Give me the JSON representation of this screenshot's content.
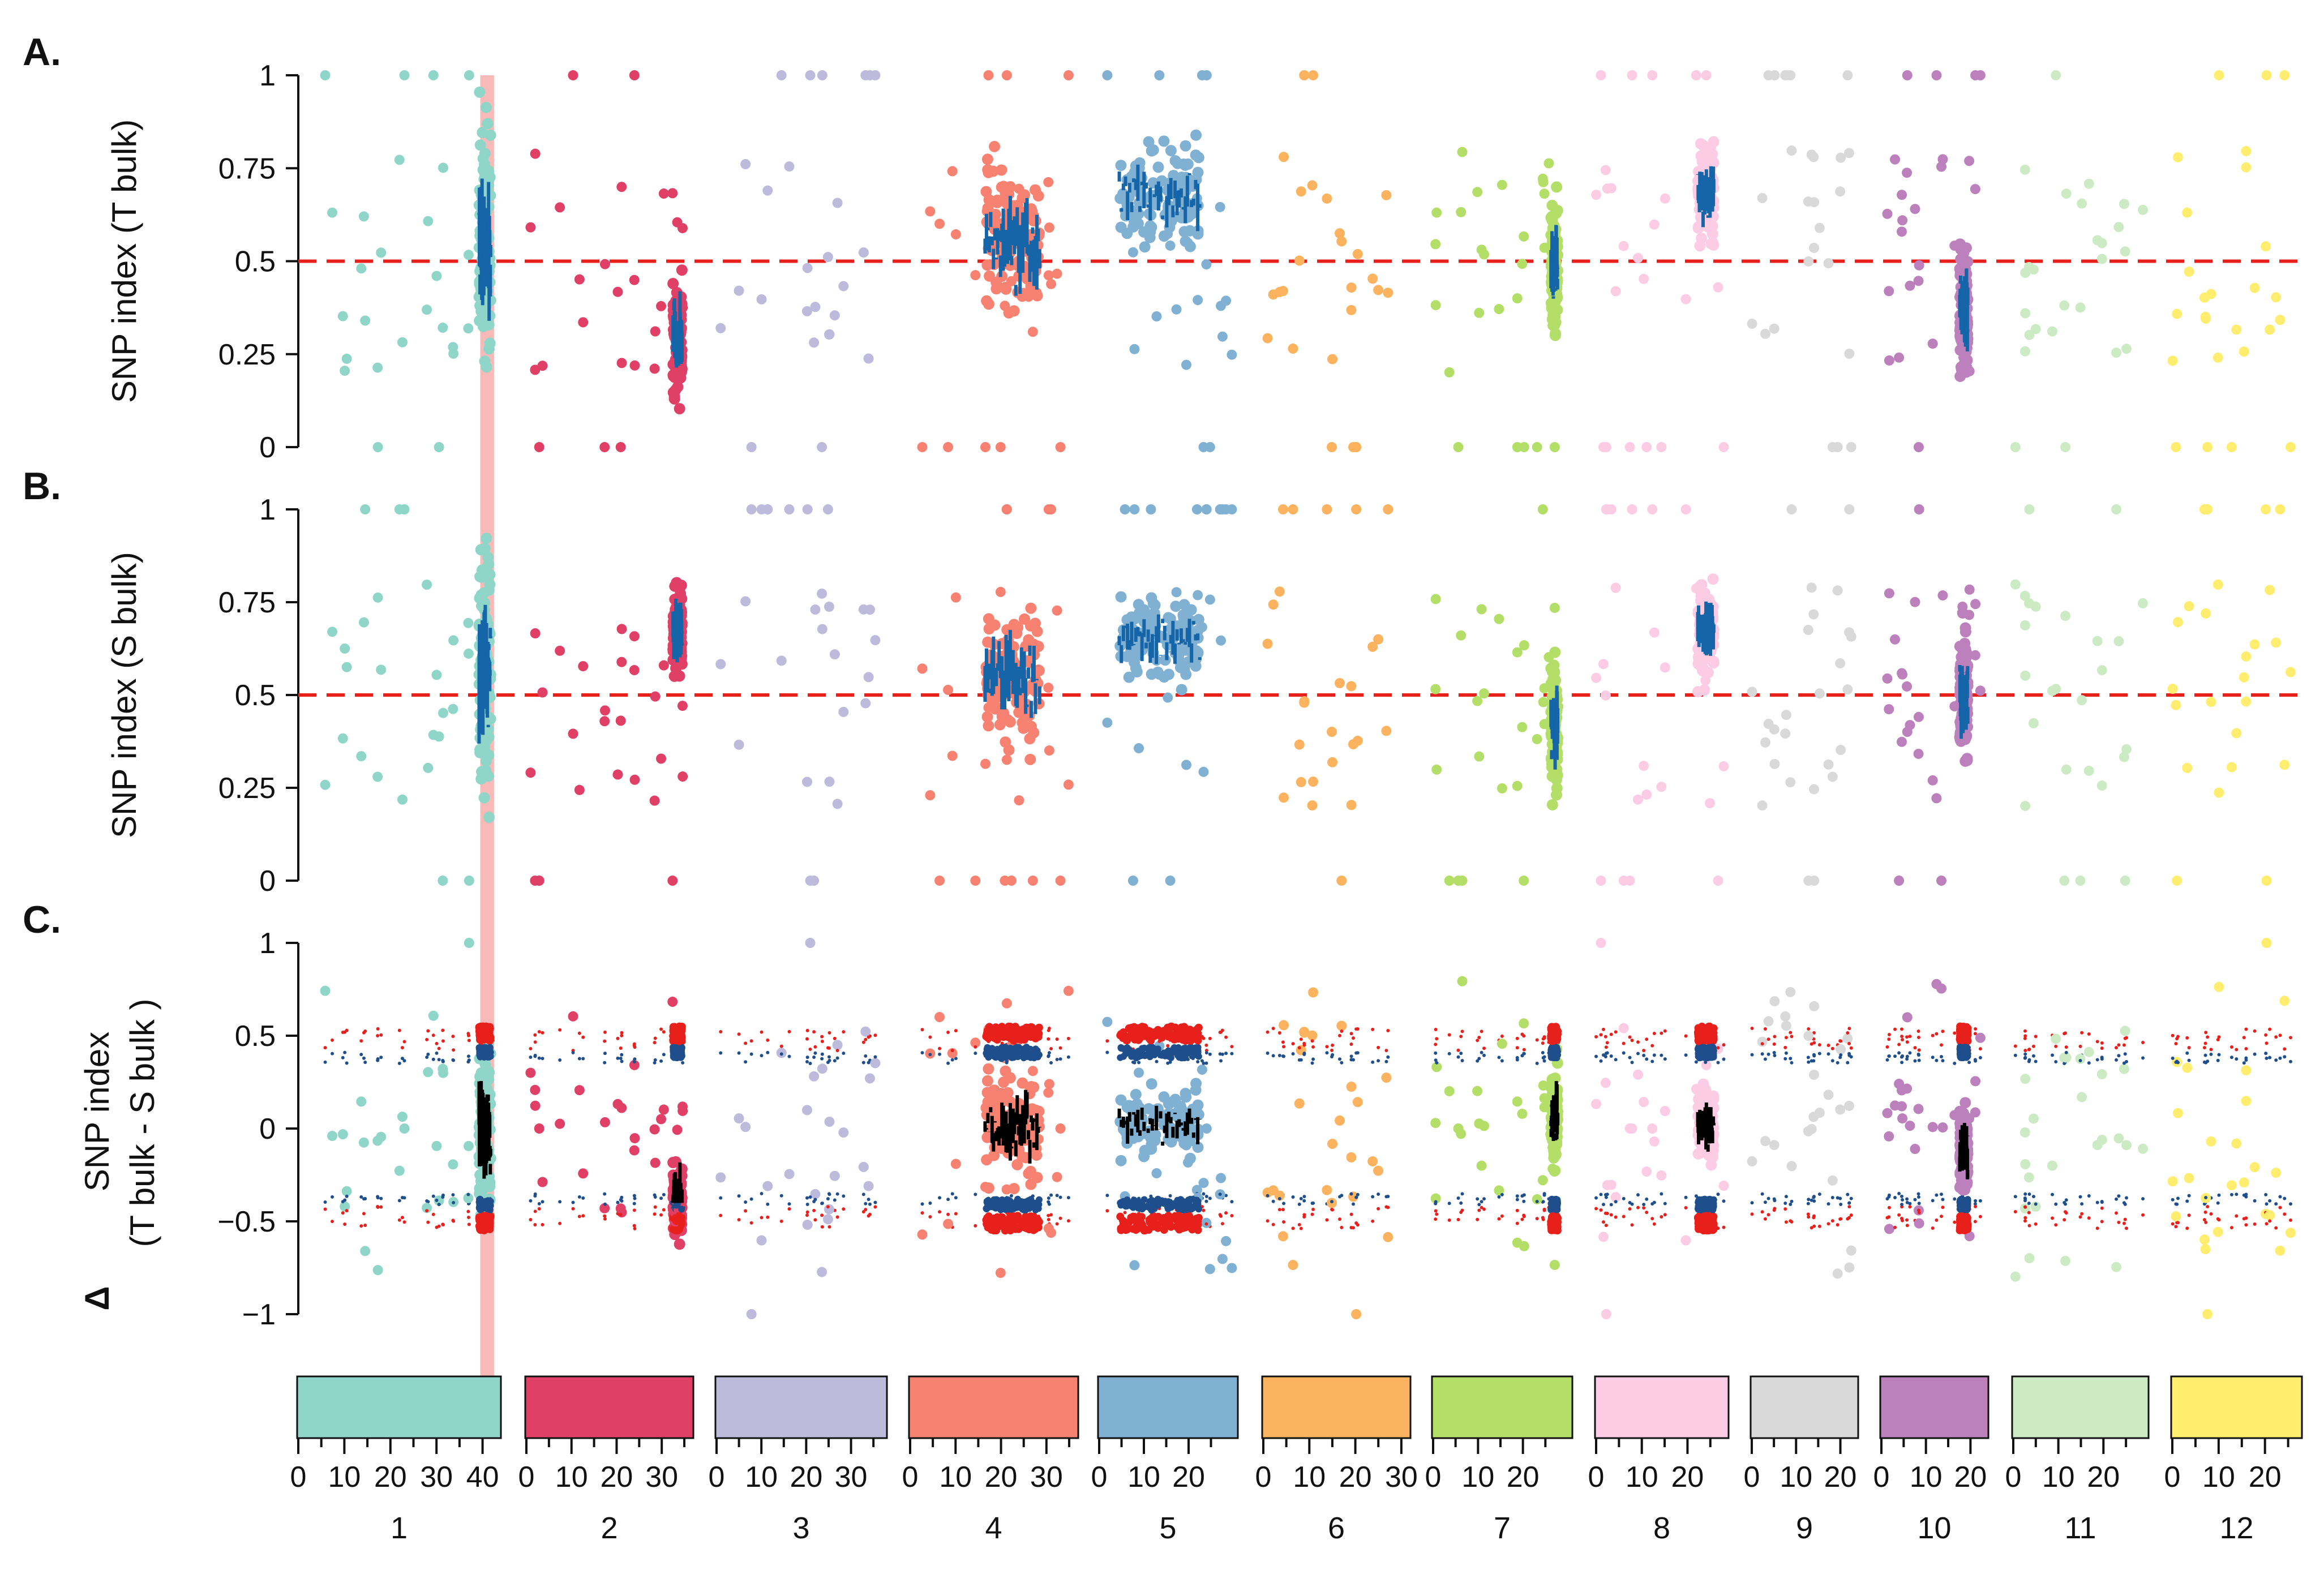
{
  "chart_data": {
    "type": "scatter",
    "panels": [
      {
        "letter": "A.",
        "ylabel": "SNP index (T bulk)",
        "ylim": [
          0,
          1
        ],
        "yticks": [
          "0",
          "0.25",
          "0.5",
          "0.75",
          "1"
        ],
        "ref_line": 0.5
      },
      {
        "letter": "B.",
        "ylabel": "SNP index (S bulk)",
        "ylim": [
          0,
          1
        ],
        "yticks": [
          "0",
          "0.25",
          "0.5",
          "0.75",
          "1"
        ],
        "ref_line": 0.5
      },
      {
        "letter": "C.",
        "ylabel": "SNP index",
        "ylabel_line2": "(T bulk - S bulk )",
        "delta_symbol": "Δ",
        "ylim": [
          -1,
          1
        ],
        "yticks": [
          "−1",
          "−0.5",
          "0",
          "0.5",
          "1"
        ],
        "ref_line": null
      }
    ],
    "chromosomes": [
      {
        "name": "1",
        "color": "#8fd6c9",
        "length_mb": 43,
        "ticks": [
          "0",
          "10",
          "20",
          "30",
          "40"
        ]
      },
      {
        "name": "2",
        "color": "#e04065",
        "length_mb": 36,
        "ticks": [
          "0",
          "10",
          "20",
          "30"
        ]
      },
      {
        "name": "3",
        "color": "#bdbadc",
        "length_mb": 37,
        "ticks": [
          "0",
          "10",
          "20",
          "30"
        ]
      },
      {
        "name": "4",
        "color": "#f88272",
        "length_mb": 36,
        "ticks": [
          "0",
          "10",
          "20",
          "30"
        ]
      },
      {
        "name": "5",
        "color": "#80b1d3",
        "length_mb": 30,
        "ticks": [
          "0",
          "10",
          "20"
        ]
      },
      {
        "name": "6",
        "color": "#fbb35f",
        "length_mb": 31,
        "ticks": [
          "0",
          "10",
          "20",
          "30"
        ]
      },
      {
        "name": "7",
        "color": "#b3de68",
        "length_mb": 30,
        "ticks": [
          "0",
          "10",
          "20"
        ]
      },
      {
        "name": "8",
        "color": "#fcccE5",
        "length_mb": 28,
        "ticks": [
          "0",
          "10",
          "20"
        ]
      },
      {
        "name": "9",
        "color": "#d9d9d9",
        "length_mb": 23,
        "ticks": [
          "0",
          "10",
          "20"
        ]
      },
      {
        "name": "10",
        "color": "#bc80bd",
        "length_mb": 23,
        "ticks": [
          "0",
          "10",
          "20"
        ]
      },
      {
        "name": "11",
        "color": "#ccebc5",
        "length_mb": 29,
        "ticks": [
          "0",
          "10",
          "20"
        ]
      },
      {
        "name": "12",
        "color": "#ffed6f",
        "length_mb": 27,
        "ticks": [
          "0",
          "10",
          "20"
        ]
      }
    ],
    "highlight": {
      "chromosome": "1",
      "start_mb": 39.5,
      "end_mb": 42.5,
      "color": "#f4a3a0"
    },
    "ci_colors": {
      "ci95": "#e8201c",
      "ci99": "#1e4f8c",
      "delta_line": "#000000",
      "index_line": "#1565a8"
    },
    "regions": [
      {
        "chr": "1",
        "center_mb": 40.5,
        "width_mb": 2.5,
        "a_mean": 0.55,
        "a_spread": 0.45,
        "b_mean": 0.55,
        "b_spread": 0.45
      },
      {
        "chr": "2",
        "center_mb": 33.5,
        "width_mb": 2.0,
        "a_mean": 0.3,
        "a_spread": 0.22,
        "b_mean": 0.68,
        "b_spread": 0.18
      },
      {
        "chr": "4",
        "center_mb": 22.5,
        "width_mb": 12.0,
        "a_mean": 0.55,
        "a_spread": 0.3,
        "b_mean": 0.55,
        "b_spread": 0.28
      },
      {
        "chr": "5",
        "center_mb": 13.5,
        "width_mb": 18.0,
        "a_mean": 0.68,
        "a_spread": 0.2,
        "b_mean": 0.65,
        "b_spread": 0.18
      },
      {
        "chr": "7",
        "center_mb": 27.0,
        "width_mb": 1.5,
        "a_mean": 0.48,
        "a_spread": 0.25,
        "b_mean": 0.42,
        "b_spread": 0.25
      },
      {
        "chr": "8",
        "center_mb": 24.0,
        "width_mb": 3.5,
        "a_mean": 0.68,
        "a_spread": 0.18,
        "b_mean": 0.68,
        "b_spread": 0.18
      },
      {
        "chr": "10",
        "center_mb": 18.5,
        "width_mb": 1.8,
        "a_mean": 0.38,
        "a_spread": 0.25,
        "b_mean": 0.5,
        "b_spread": 0.25
      }
    ]
  }
}
